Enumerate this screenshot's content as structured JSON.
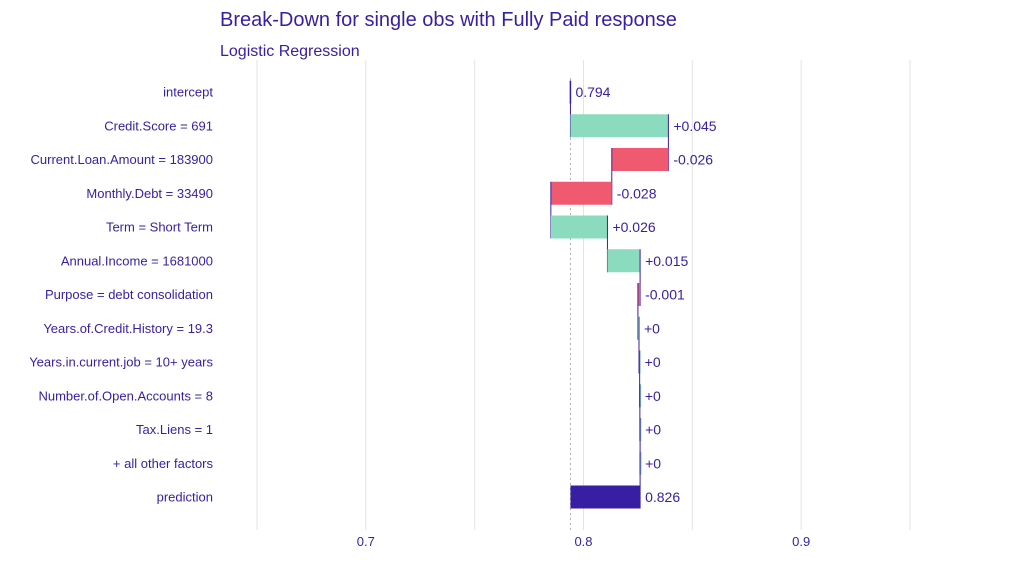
{
  "chart_data": {
    "type": "bar",
    "title": "Break-Down for single obs with Fully Paid response",
    "subtitle": "Logistic Regression",
    "xlabel": "",
    "ylabel": "",
    "xlim": [
      0.65,
      0.95
    ],
    "xticks": [
      "0.7",
      "0.8",
      "0.9"
    ],
    "xtick_values": [
      0.7,
      0.8,
      0.9
    ],
    "gridlines": [
      0.65,
      0.7,
      0.75,
      0.8,
      0.85,
      0.9,
      0.95
    ],
    "baseline": 0.794,
    "grid": true,
    "colors": {
      "positive": "#8bdcbe",
      "negative": "#f05a71",
      "prediction": "#371ea3",
      "connector": "#371ea3",
      "text": "#371ea3",
      "grid": "#e3e3e3",
      "baseline": "#b0b0b0"
    },
    "bars": [
      {
        "variable": "intercept",
        "start": 0.794,
        "end": 0.794,
        "label": "0.794",
        "kind": "intercept"
      },
      {
        "variable": "Credit.Score = 691",
        "start": 0.794,
        "end": 0.839,
        "label": "+0.045",
        "kind": "positive"
      },
      {
        "variable": "Current.Loan.Amount = 183900",
        "start": 0.839,
        "end": 0.813,
        "label": "-0.026",
        "kind": "negative"
      },
      {
        "variable": "Monthly.Debt = 33490",
        "start": 0.813,
        "end": 0.785,
        "label": "-0.028",
        "kind": "negative"
      },
      {
        "variable": "Term = Short Term",
        "start": 0.785,
        "end": 0.811,
        "label": "+0.026",
        "kind": "positive"
      },
      {
        "variable": "Annual.Income = 1681000",
        "start": 0.811,
        "end": 0.826,
        "label": "+0.015",
        "kind": "positive"
      },
      {
        "variable": "Purpose = debt consolidation",
        "start": 0.826,
        "end": 0.825,
        "label": "-0.001",
        "kind": "negative"
      },
      {
        "variable": "Years.of.Credit.History = 19.3",
        "start": 0.825,
        "end": 0.8255,
        "label": "+0",
        "kind": "positive"
      },
      {
        "variable": "Years.in.current.job = 10+ years",
        "start": 0.8255,
        "end": 0.8258,
        "label": "+0",
        "kind": "positive"
      },
      {
        "variable": "Number.of.Open.Accounts = 8",
        "start": 0.8258,
        "end": 0.8259,
        "label": "+0",
        "kind": "positive"
      },
      {
        "variable": "Tax.Liens = 1",
        "start": 0.8259,
        "end": 0.826,
        "label": "+0",
        "kind": "positive"
      },
      {
        "variable": "+ all other factors",
        "start": 0.826,
        "end": 0.826,
        "label": "+0",
        "kind": "positive"
      },
      {
        "variable": "prediction",
        "start": 0.794,
        "end": 0.826,
        "label": "0.826",
        "kind": "prediction"
      }
    ]
  }
}
